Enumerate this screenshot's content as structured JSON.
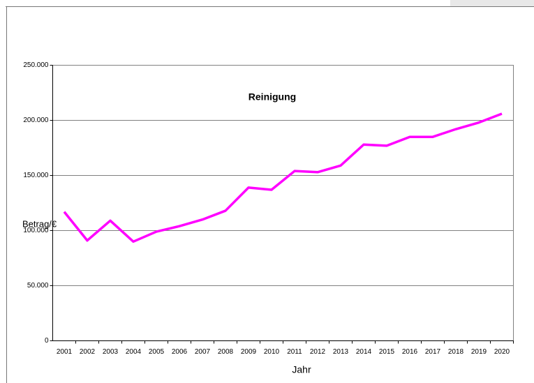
{
  "chart_data": {
    "type": "line",
    "title": "Reinigung",
    "x_label": "Jahr",
    "y_label": "Betrag/€",
    "categories": [
      "2001",
      "2002",
      "2003",
      "2004",
      "2005",
      "2006",
      "2007",
      "2008",
      "2009",
      "2010",
      "2011",
      "2012",
      "2013",
      "2014",
      "2015",
      "2016",
      "2017",
      "2018",
      "2019",
      "2020"
    ],
    "series": [
      {
        "name": "Reinigung",
        "color": "#ff00ff",
        "values": [
          117000,
          91000,
          109000,
          90000,
          99000,
          104000,
          110000,
          118000,
          139000,
          137000,
          154000,
          153000,
          159000,
          178000,
          177000,
          185000,
          185000,
          192000,
          198000,
          206000
        ]
      }
    ],
    "ylim": [
      0,
      250000
    ],
    "yticks": [
      0,
      {
        "value": 50000,
        "label": "50.000"
      },
      {
        "value": 100000,
        "label": "100.000"
      },
      {
        "value": 150000,
        "label": "150.000"
      },
      {
        "value": 200000,
        "label": "200.000"
      },
      {
        "value": 250000,
        "label": "250.000"
      }
    ],
    "grid": true
  }
}
